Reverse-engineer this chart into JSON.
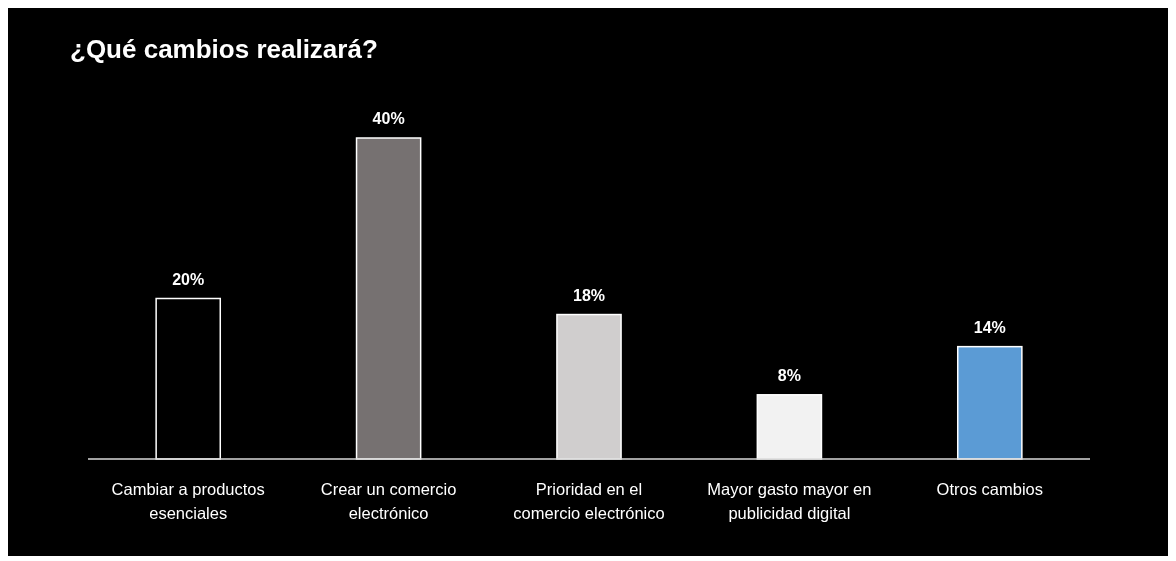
{
  "chart_data": {
    "type": "bar",
    "title": "¿Qué cambios realizará?",
    "categories": [
      "Cambiar a productos esenciales",
      "Crear un comercio electrónico",
      "Prioridad en el comercio electrónico",
      "Mayor gasto mayor en publicidad digital",
      "Otros cambios"
    ],
    "values": [
      20,
      40,
      18,
      8,
      14
    ],
    "colors": [
      "#000000",
      "#767171",
      "#d0cece",
      "#f2f2f2",
      "#5b9bd5"
    ],
    "value_labels": [
      "20%",
      "40%",
      "18%",
      "8%",
      "14%"
    ]
  }
}
